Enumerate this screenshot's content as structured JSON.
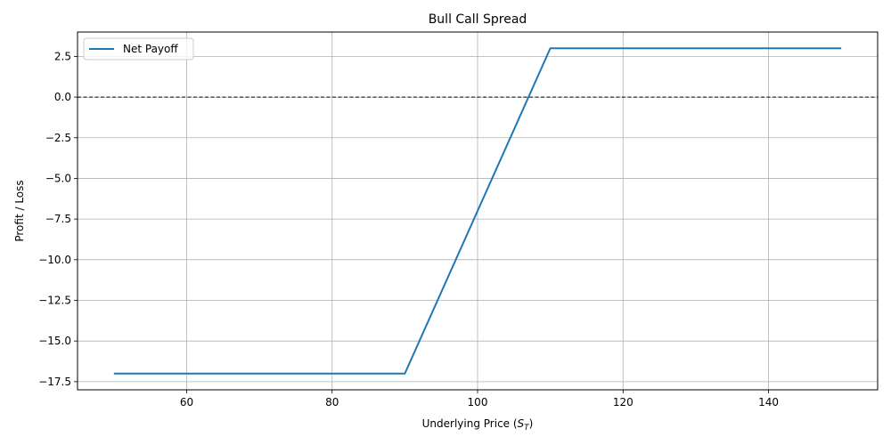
{
  "chart_data": {
    "type": "line",
    "title": "Bull Call Spread",
    "xlabel": "Underlying Price (",
    "xlabel_math_base": "S",
    "xlabel_math_sub": "T",
    "xlabel_suffix": ")",
    "ylabel": "Profit / Loss",
    "xlim": [
      45,
      155
    ],
    "ylim": [
      -18,
      4
    ],
    "x_ticks": [
      60,
      80,
      100,
      120,
      140
    ],
    "x_tick_labels": [
      "60",
      "80",
      "100",
      "120",
      "140"
    ],
    "y_ticks": [
      2.5,
      0,
      -2.5,
      -5,
      -7.5,
      -10,
      -12.5,
      -15,
      -17.5
    ],
    "y_tick_labels": [
      "2.5",
      "0.0",
      "−2.5",
      "−5.0",
      "−7.5",
      "−10.0",
      "−12.5",
      "−15.0",
      "−17.5"
    ],
    "grid": true,
    "legend_position": "top-left",
    "reference_line": {
      "y": 0,
      "style": "dashed",
      "color": "#000000"
    },
    "series": [
      {
        "name": "Net Payoff",
        "color": "#1f77b4",
        "x": [
          50,
          90,
          110,
          150
        ],
        "y": [
          -17,
          -17,
          3,
          3
        ]
      }
    ]
  }
}
